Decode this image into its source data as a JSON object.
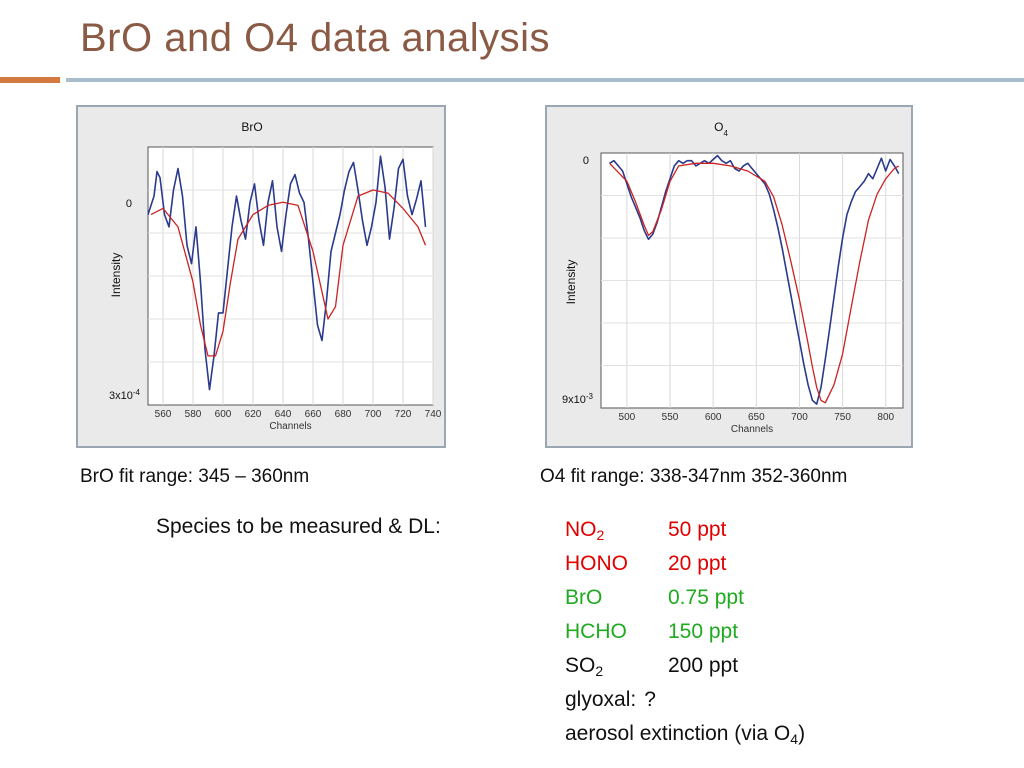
{
  "slide": {
    "title": "BrO and O4 data analysis",
    "bro_caption": "BrO fit range: 345 – 360nm",
    "o4_caption": "O4 fit range: 338-347nm 352-360nm",
    "species_label": "Species to be measured & DL:"
  },
  "species": [
    {
      "name": "NO",
      "sub": "2",
      "dl": "50 ppt",
      "color": "#e00000"
    },
    {
      "name": "HONO",
      "sub": "",
      "dl": "20 ppt",
      "color": "#e00000"
    },
    {
      "name": "BrO",
      "sub": "",
      "dl": "0.75 ppt",
      "color": "#1faa1f"
    },
    {
      "name": "HCHO",
      "sub": "",
      "dl": "150 ppt",
      "color": "#1faa1f"
    },
    {
      "name": "SO",
      "sub": "2",
      "dl": "200 ppt",
      "color": "#111111"
    },
    {
      "name": "glyoxal:",
      "sub": "",
      "dl": "?",
      "color": "#111111"
    },
    {
      "name": "aerosol extinction (via O",
      "sub": "4",
      "dl": ")",
      "color": "#111111"
    }
  ],
  "chart_data": [
    {
      "type": "line",
      "title": "BrO",
      "title_sub": "",
      "xlabel": "Channels",
      "ylabel": "Intensity",
      "y_top_label": "0",
      "y_bottom_label": "3x10",
      "y_bottom_exp": "-4",
      "xlim": [
        550,
        740
      ],
      "ylim": [
        -3.2,
        1.0
      ],
      "xticks": [
        560,
        580,
        600,
        620,
        640,
        660,
        680,
        700,
        720,
        740
      ],
      "grid": true,
      "colors": {
        "measured": "#2a3a8c",
        "fit": "#cc2222"
      },
      "series": [
        {
          "name": "measured",
          "x": [
            550,
            554,
            556,
            558,
            561,
            564,
            567,
            570,
            573,
            576,
            579,
            582,
            585,
            588,
            591,
            594,
            597,
            600,
            603,
            606,
            609,
            612,
            615,
            618,
            621,
            624,
            627,
            630,
            633,
            636,
            639,
            642,
            645,
            648,
            651,
            654,
            657,
            660,
            663,
            666,
            669,
            672,
            675,
            678,
            681,
            684,
            687,
            690,
            693,
            696,
            699,
            702,
            705,
            708,
            711,
            714,
            717,
            720,
            723,
            726,
            729,
            732,
            735
          ],
          "y": [
            -0.1,
            0.2,
            0.6,
            0.5,
            -0.1,
            -0.3,
            0.3,
            0.65,
            0.2,
            -0.6,
            -0.9,
            -0.3,
            -1.2,
            -2.3,
            -2.95,
            -2.4,
            -1.7,
            -1.7,
            -1.0,
            -0.3,
            0.2,
            -0.2,
            -0.5,
            0.1,
            0.4,
            -0.2,
            -0.6,
            0.1,
            0.45,
            -0.3,
            -0.7,
            -0.1,
            0.4,
            0.55,
            0.25,
            0.1,
            -0.5,
            -1.2,
            -1.9,
            -2.15,
            -1.5,
            -0.7,
            -0.4,
            -0.1,
            0.3,
            0.6,
            0.75,
            0.3,
            -0.2,
            -0.6,
            -0.3,
            0.1,
            0.85,
            0.35,
            -0.5,
            0.0,
            0.65,
            0.8,
            0.2,
            -0.1,
            0.15,
            0.45,
            -0.3
          ]
        },
        {
          "name": "fit",
          "x": [
            552,
            560,
            570,
            580,
            585,
            590,
            595,
            600,
            605,
            610,
            620,
            630,
            640,
            650,
            660,
            670,
            675,
            680,
            690,
            700,
            710,
            720,
            730,
            735
          ],
          "y": [
            -0.1,
            0.0,
            -0.3,
            -1.2,
            -1.9,
            -2.4,
            -2.4,
            -2.0,
            -1.2,
            -0.5,
            -0.1,
            0.05,
            0.1,
            0.05,
            -0.7,
            -1.8,
            -1.6,
            -0.6,
            0.2,
            0.3,
            0.25,
            0.0,
            -0.3,
            -0.6
          ]
        }
      ]
    },
    {
      "type": "line",
      "title": "O",
      "title_sub": "4",
      "xlabel": "Channels",
      "ylabel": "Intensity",
      "y_top_label": "0",
      "y_bottom_label": "9x10",
      "y_bottom_exp": "-3",
      "xlim": [
        470,
        820
      ],
      "ylim": [
        -9.5,
        0.4
      ],
      "xticks": [
        500,
        550,
        600,
        650,
        700,
        750,
        800
      ],
      "grid": true,
      "colors": {
        "measured": "#2a3a8c",
        "fit": "#cc2222"
      },
      "series": [
        {
          "name": "measured",
          "x": [
            480,
            485,
            490,
            495,
            500,
            505,
            510,
            515,
            520,
            525,
            530,
            535,
            540,
            545,
            550,
            555,
            560,
            565,
            570,
            575,
            580,
            585,
            590,
            595,
            600,
            605,
            610,
            615,
            620,
            625,
            630,
            635,
            640,
            645,
            650,
            655,
            660,
            665,
            670,
            675,
            680,
            685,
            690,
            695,
            700,
            705,
            710,
            715,
            720,
            725,
            730,
            735,
            740,
            745,
            750,
            755,
            760,
            765,
            770,
            775,
            780,
            785,
            790,
            795,
            800,
            805,
            810,
            815
          ],
          "y": [
            0.0,
            0.1,
            -0.1,
            -0.3,
            -0.8,
            -1.3,
            -1.7,
            -2.1,
            -2.6,
            -2.95,
            -2.75,
            -2.3,
            -1.7,
            -1.1,
            -0.6,
            -0.1,
            0.1,
            0.0,
            0.1,
            0.1,
            -0.1,
            0.0,
            0.1,
            0.0,
            0.15,
            0.3,
            0.1,
            0.0,
            0.1,
            -0.2,
            -0.3,
            -0.1,
            0.0,
            -0.2,
            -0.4,
            -0.6,
            -0.8,
            -1.2,
            -1.8,
            -2.5,
            -3.3,
            -4.2,
            -5.1,
            -6.0,
            -6.9,
            -7.8,
            -8.6,
            -9.2,
            -9.35,
            -8.7,
            -7.6,
            -6.4,
            -5.2,
            -4.0,
            -2.9,
            -2.0,
            -1.5,
            -1.1,
            -0.9,
            -0.7,
            -0.4,
            -0.6,
            -0.2,
            0.2,
            -0.3,
            0.15,
            -0.1,
            -0.4
          ]
        },
        {
          "name": "fit",
          "x": [
            480,
            500,
            510,
            520,
            525,
            530,
            540,
            550,
            560,
            580,
            600,
            620,
            640,
            660,
            670,
            680,
            690,
            700,
            710,
            715,
            720,
            725,
            730,
            740,
            750,
            760,
            770,
            780,
            790,
            800,
            810,
            815
          ],
          "y": [
            0.0,
            -0.7,
            -1.5,
            -2.4,
            -2.8,
            -2.65,
            -1.8,
            -0.7,
            -0.1,
            0.0,
            0.0,
            -0.1,
            -0.3,
            -0.7,
            -1.3,
            -2.4,
            -3.8,
            -5.3,
            -7.0,
            -7.9,
            -8.7,
            -9.2,
            -9.3,
            -8.6,
            -7.4,
            -5.6,
            -3.8,
            -2.2,
            -1.2,
            -0.6,
            -0.2,
            -0.1
          ]
        }
      ]
    }
  ]
}
